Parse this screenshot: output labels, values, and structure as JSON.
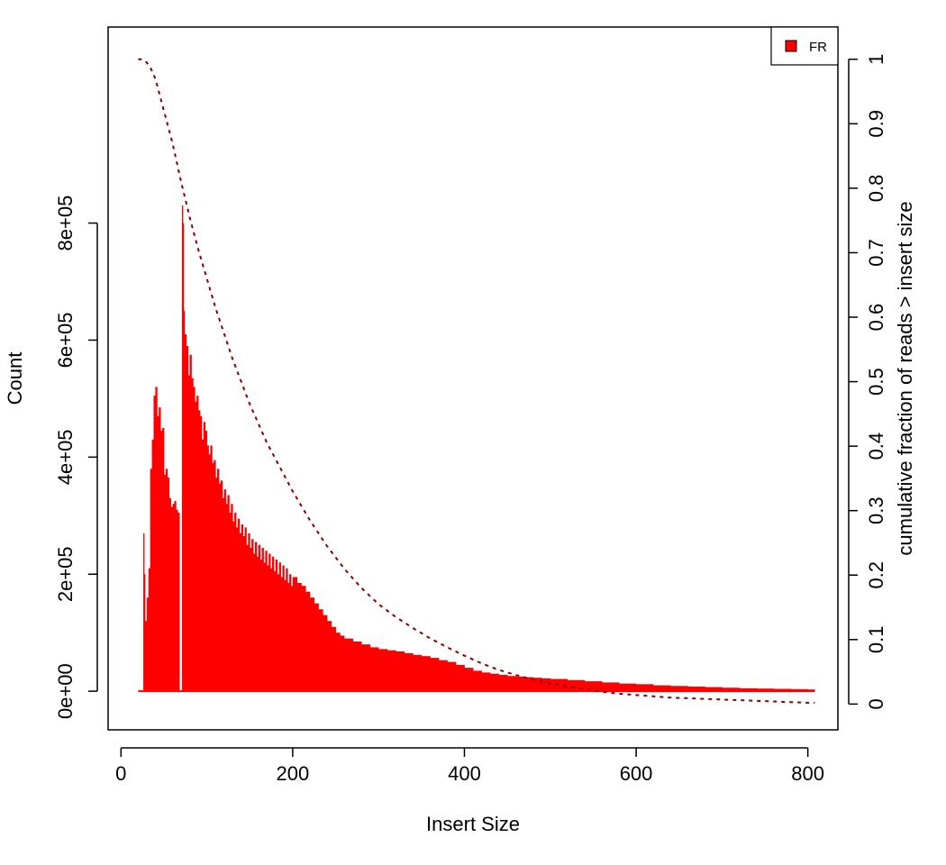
{
  "chart_data": {
    "type": "bar",
    "title": "",
    "xlabel": "Insert Size",
    "ylabel": "Count",
    "ylabel_right": "cumulative fraction of reads > insert size",
    "xlim": [
      -15,
      835
    ],
    "ylim": [
      -66000,
      1135000
    ],
    "ylim_right": [
      -0.04,
      1.05
    ],
    "x_ticks": [
      0,
      200,
      400,
      600,
      800
    ],
    "y_ticks": [
      0,
      200000,
      400000,
      600000,
      800000
    ],
    "y_tick_labels": [
      "0e+00",
      "2e+05",
      "4e+05",
      "6e+05",
      "8e+05"
    ],
    "y_ticks_right": [
      0,
      0.1,
      0.2,
      0.3,
      0.4,
      0.5,
      0.6,
      0.7,
      0.8,
      0.9,
      1
    ],
    "y_tick_labels_right": [
      "0",
      "0.1",
      "0.2",
      "0.3",
      "0.4",
      "0.5",
      "0.6",
      "0.7",
      "0.8",
      "0.9",
      "1"
    ],
    "legend": {
      "position": "top-right",
      "entries": [
        "FR"
      ]
    },
    "grid": false,
    "colors": {
      "bars": "#ff0000",
      "cumulative_line": "#8b0000",
      "legend_fill": "#ff0000"
    },
    "series": [
      {
        "name": "FR",
        "kind": "histogram",
        "x": [
          20,
          25,
          26,
          27,
          28,
          30,
          32,
          34,
          36,
          38,
          40,
          42,
          44,
          46,
          48,
          50,
          52,
          54,
          56,
          58,
          60,
          62,
          64,
          66,
          68,
          69,
          70,
          71,
          72,
          73,
          74,
          76,
          78,
          80,
          82,
          84,
          86,
          88,
          90,
          92,
          94,
          96,
          98,
          100,
          102,
          104,
          106,
          108,
          110,
          112,
          114,
          116,
          118,
          120,
          122,
          124,
          126,
          128,
          130,
          132,
          134,
          136,
          138,
          140,
          142,
          144,
          146,
          148,
          150,
          152,
          154,
          156,
          158,
          160,
          162,
          164,
          166,
          168,
          170,
          172,
          174,
          176,
          178,
          180,
          182,
          184,
          186,
          188,
          190,
          192,
          194,
          196,
          198,
          200,
          205,
          210,
          215,
          220,
          225,
          230,
          235,
          240,
          245,
          250,
          255,
          260,
          270,
          280,
          290,
          300,
          310,
          320,
          330,
          340,
          350,
          360,
          370,
          380,
          390,
          400,
          410,
          420,
          430,
          440,
          450,
          460,
          470,
          480,
          490,
          500,
          520,
          540,
          560,
          580,
          600,
          620,
          640,
          660,
          680,
          700,
          720,
          740,
          760,
          780,
          800,
          808
        ],
        "values": [
          0,
          0,
          270000,
          200000,
          120000,
          160000,
          210000,
          380000,
          430000,
          505000,
          520000,
          470000,
          485000,
          445000,
          450000,
          370000,
          380000,
          365000,
          330000,
          315000,
          320000,
          325000,
          310000,
          305000,
          0,
          0,
          0,
          830000,
          800000,
          650000,
          610000,
          590000,
          540000,
          575000,
          535000,
          520000,
          495000,
          505000,
          480000,
          470000,
          430000,
          460000,
          445000,
          420000,
          405000,
          420000,
          390000,
          395000,
          365000,
          380000,
          355000,
          360000,
          330000,
          345000,
          320000,
          335000,
          305000,
          320000,
          290000,
          305000,
          280000,
          295000,
          270000,
          285000,
          265000,
          280000,
          250000,
          270000,
          245000,
          260000,
          235000,
          255000,
          230000,
          250000,
          225000,
          245000,
          220000,
          240000,
          215000,
          235000,
          210000,
          230000,
          205000,
          225000,
          200000,
          220000,
          195000,
          215000,
          190000,
          210000,
          185000,
          200000,
          180000,
          195000,
          185000,
          180000,
          170000,
          160000,
          150000,
          140000,
          130000,
          120000,
          110000,
          100000,
          95000,
          90000,
          85000,
          80000,
          75000,
          72000,
          70000,
          68000,
          65000,
          62000,
          60000,
          57000,
          53000,
          50000,
          45000,
          40000,
          35000,
          32000,
          30000,
          28000,
          26000,
          25000,
          24000,
          23000,
          22000,
          21000,
          19000,
          17000,
          15000,
          13000,
          12000,
          10000,
          9000,
          8000,
          7000,
          6000,
          5000,
          4500,
          4000,
          3500,
          3000,
          2800
        ]
      },
      {
        "name": "",
        "kind": "cumulative-dashed",
        "axis": "right",
        "x": [
          20,
          25,
          30,
          35,
          40,
          45,
          50,
          60,
          70,
          80,
          90,
          100,
          110,
          120,
          130,
          140,
          150,
          160,
          170,
          180,
          190,
          200,
          220,
          240,
          260,
          280,
          300,
          320,
          340,
          360,
          380,
          400,
          420,
          440,
          460,
          480,
          500,
          520,
          540,
          560,
          580,
          600,
          620,
          640,
          660,
          680,
          700,
          720,
          740,
          760,
          780,
          800,
          808
        ],
        "values": [
          1.0,
          1.0,
          0.995,
          0.985,
          0.97,
          0.945,
          0.92,
          0.87,
          0.81,
          0.755,
          0.705,
          0.66,
          0.615,
          0.575,
          0.535,
          0.5,
          0.465,
          0.435,
          0.405,
          0.38,
          0.355,
          0.33,
          0.285,
          0.245,
          0.21,
          0.18,
          0.155,
          0.135,
          0.118,
          0.102,
          0.088,
          0.075,
          0.063,
          0.053,
          0.045,
          0.038,
          0.032,
          0.027,
          0.023,
          0.019,
          0.016,
          0.014,
          0.012,
          0.01,
          0.009,
          0.008,
          0.007,
          0.006,
          0.005,
          0.004,
          0.003,
          0.002,
          0.002
        ]
      }
    ]
  }
}
